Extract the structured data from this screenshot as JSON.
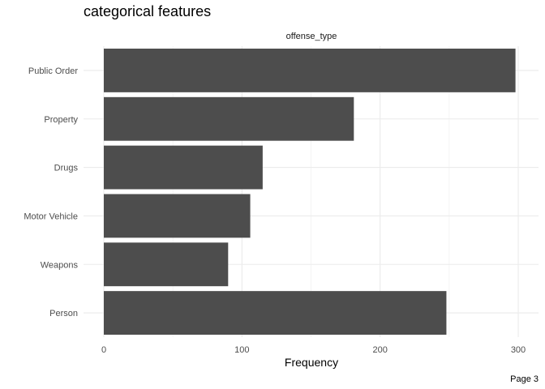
{
  "chart_data": {
    "type": "bar",
    "orientation": "horizontal",
    "title": "categorical features",
    "facet_label": "offense_type",
    "categories": [
      "Public Order",
      "Property",
      "Drugs",
      "Motor Vehicle",
      "Weapons",
      "Person"
    ],
    "values": [
      298,
      181,
      115,
      106,
      90,
      248
    ],
    "xlabel": "Frequency",
    "ylabel": "",
    "xlim": [
      0,
      310
    ],
    "xticks": [
      0,
      100,
      200,
      300
    ],
    "grid": true,
    "legend": "none",
    "bar_color": "#4d4d4d"
  },
  "footer": {
    "page_label": "Page 3"
  }
}
